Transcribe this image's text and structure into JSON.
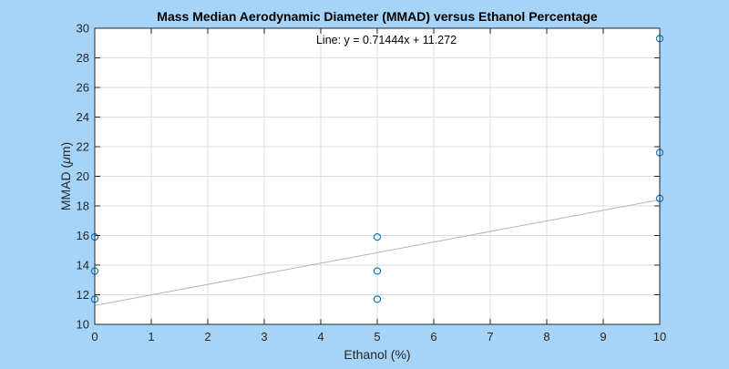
{
  "chart_data": {
    "type": "scatter",
    "title": "Mass Median Aerodynamic Diameter (MMAD) versus Ethanol Percentage",
    "xlabel": "Ethanol (%)",
    "ylabel_prefix": "MMAD (",
    "ylabel_mu": "μ",
    "ylabel_suffix": "m)",
    "xlim": [
      0,
      10
    ],
    "ylim": [
      10,
      30
    ],
    "xticks": [
      0,
      1,
      2,
      3,
      4,
      5,
      6,
      7,
      8,
      9,
      10
    ],
    "yticks": [
      10,
      12,
      14,
      16,
      18,
      20,
      22,
      24,
      26,
      28,
      30
    ],
    "grid": true,
    "points": [
      {
        "x": 0,
        "y": 11.7
      },
      {
        "x": 0,
        "y": 13.6
      },
      {
        "x": 0,
        "y": 15.9
      },
      {
        "x": 5,
        "y": 11.7
      },
      {
        "x": 5,
        "y": 13.6
      },
      {
        "x": 5,
        "y": 15.9
      },
      {
        "x": 10,
        "y": 18.5
      },
      {
        "x": 10,
        "y": 21.6
      },
      {
        "x": 10,
        "y": 29.3
      }
    ],
    "fit_line": {
      "slope": 0.71444,
      "intercept": 11.272
    },
    "annotation": "Line: y = 0.71444x + 11.272",
    "colors": {
      "figure_background": "#a5d4f8",
      "axes_background": "#ffffff",
      "marker": "#0072bd",
      "fit_line": "#b4b4b4",
      "grid": "#dcdcdc",
      "axis": "#262626"
    }
  }
}
